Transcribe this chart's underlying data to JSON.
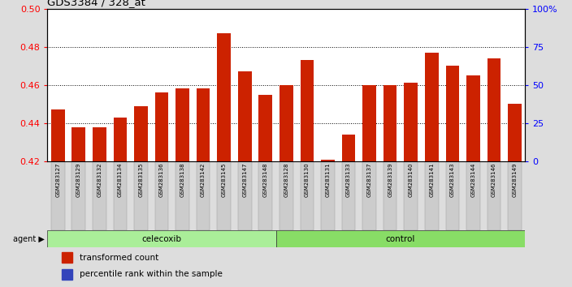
{
  "title": "GDS3384 / 328_at",
  "samples": [
    "GSM283127",
    "GSM283129",
    "GSM283132",
    "GSM283134",
    "GSM283135",
    "GSM283136",
    "GSM283138",
    "GSM283142",
    "GSM283145",
    "GSM283147",
    "GSM283148",
    "GSM283128",
    "GSM283130",
    "GSM283131",
    "GSM283133",
    "GSM283137",
    "GSM283139",
    "GSM283140",
    "GSM283141",
    "GSM283143",
    "GSM283144",
    "GSM283146",
    "GSM283149"
  ],
  "red_values": [
    0.447,
    0.438,
    0.438,
    0.443,
    0.449,
    0.456,
    0.458,
    0.458,
    0.487,
    0.467,
    0.455,
    0.46,
    0.473,
    0.421,
    0.434,
    0.46,
    0.46,
    0.461,
    0.477,
    0.47,
    0.465,
    0.474,
    0.45
  ],
  "blue_values": [
    0.0028,
    0.0028,
    0.0028,
    0.0028,
    0.0028,
    0.0028,
    0.0028,
    0.0028,
    0.0028,
    0.0028,
    0.0028,
    0.0028,
    0.0028,
    0.007,
    0.0028,
    0.0028,
    0.0028,
    0.0028,
    0.0028,
    0.0028,
    0.0028,
    0.0028,
    0.0028
  ],
  "celecoxib_count": 11,
  "control_count": 12,
  "ylim_left": [
    0.42,
    0.5
  ],
  "yticks_left": [
    0.42,
    0.44,
    0.46,
    0.48,
    0.5
  ],
  "yticks_right": [
    0,
    25,
    50,
    75,
    100
  ],
  "ytick_labels_right": [
    "0",
    "25",
    "50",
    "75",
    "100%"
  ],
  "grid_values": [
    0.44,
    0.46,
    0.48
  ],
  "bar_color_red": "#cc2200",
  "bar_color_blue": "#3344bb",
  "bar_width": 0.65,
  "celecoxib_color": "#aaee99",
  "control_color": "#88dd66",
  "legend_red_label": "transformed count",
  "legend_blue_label": "percentile rank within the sample",
  "fig_bg": "#dddddd"
}
